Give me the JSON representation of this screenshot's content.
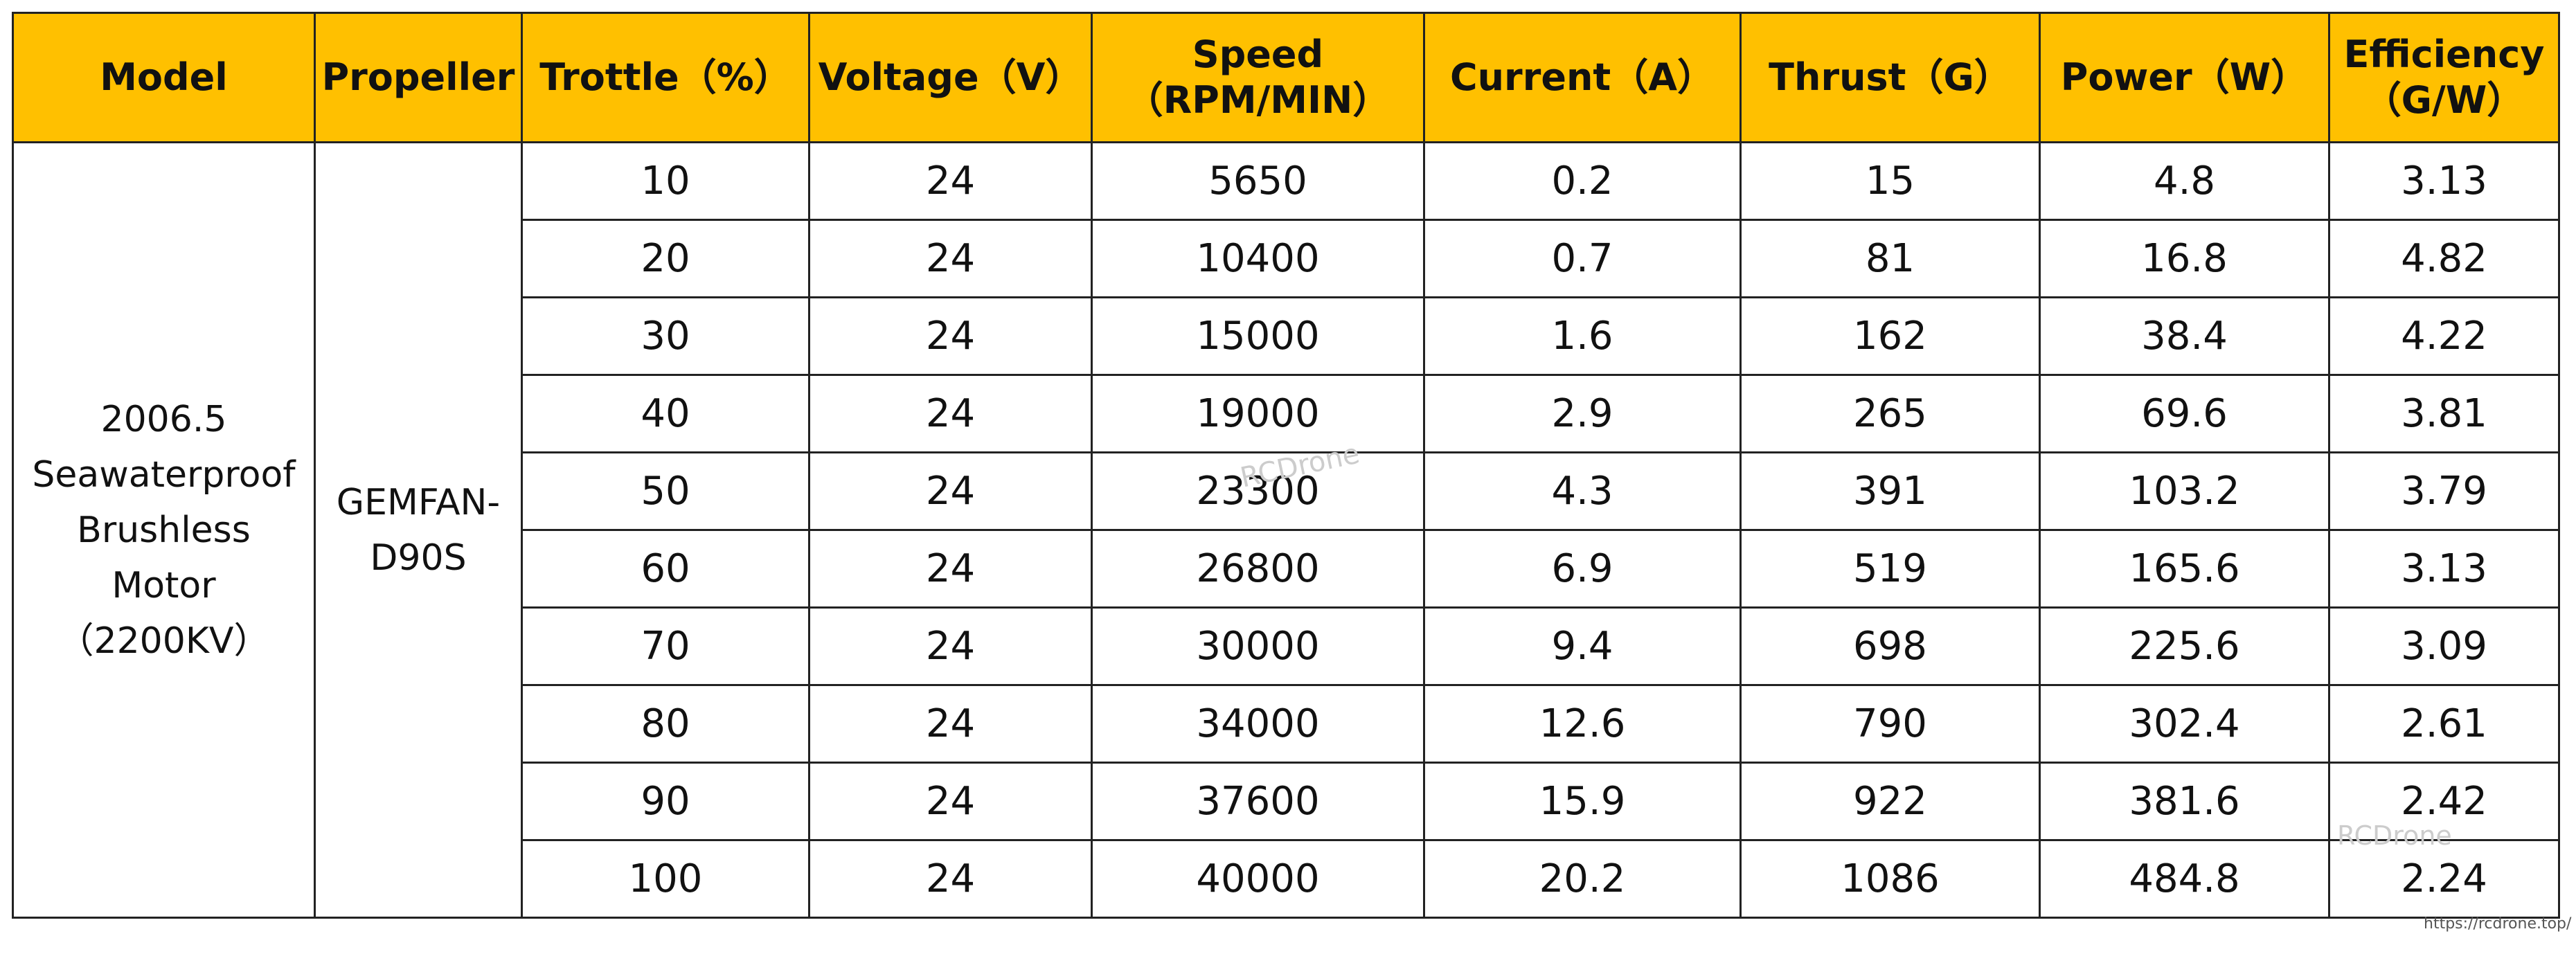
{
  "table": {
    "headers": [
      [
        "Model"
      ],
      [
        "Propeller"
      ],
      [
        "Trottle（%）"
      ],
      [
        "Voltage（V）"
      ],
      [
        "Speed",
        "（RPM/MIN）"
      ],
      [
        "Current（A）"
      ],
      [
        "Thrust（G）"
      ],
      [
        "Power（W）"
      ],
      [
        "Efficiency",
        "（G/W）"
      ]
    ],
    "model": [
      "2006.5",
      "Seawaterproof",
      "Brushless",
      "Motor",
      "（2200KV）"
    ],
    "propeller": [
      "GEMFAN-",
      "D90S"
    ],
    "rows": [
      [
        10,
        24,
        5650,
        0.2,
        15,
        4.8,
        3.13
      ],
      [
        20,
        24,
        10400,
        0.7,
        81,
        16.8,
        4.82
      ],
      [
        30,
        24,
        15000,
        1.6,
        162,
        38.4,
        4.22
      ],
      [
        40,
        24,
        19000,
        2.9,
        265,
        69.6,
        3.81
      ],
      [
        50,
        24,
        23300,
        4.3,
        391,
        103.2,
        3.79
      ],
      [
        60,
        24,
        26800,
        6.9,
        519,
        165.6,
        3.13
      ],
      [
        70,
        24,
        30000,
        9.4,
        698,
        225.6,
        3.09
      ],
      [
        80,
        24,
        34000,
        12.6,
        790,
        302.4,
        2.61
      ],
      [
        90,
        24,
        37600,
        15.9,
        922,
        381.6,
        2.42
      ],
      [
        100,
        24,
        40000,
        20.2,
        1086,
        484.8,
        2.24
      ]
    ]
  },
  "watermarks": [
    "RCDrone",
    "RCDrone",
    "https://rcdrone.top/"
  ]
}
